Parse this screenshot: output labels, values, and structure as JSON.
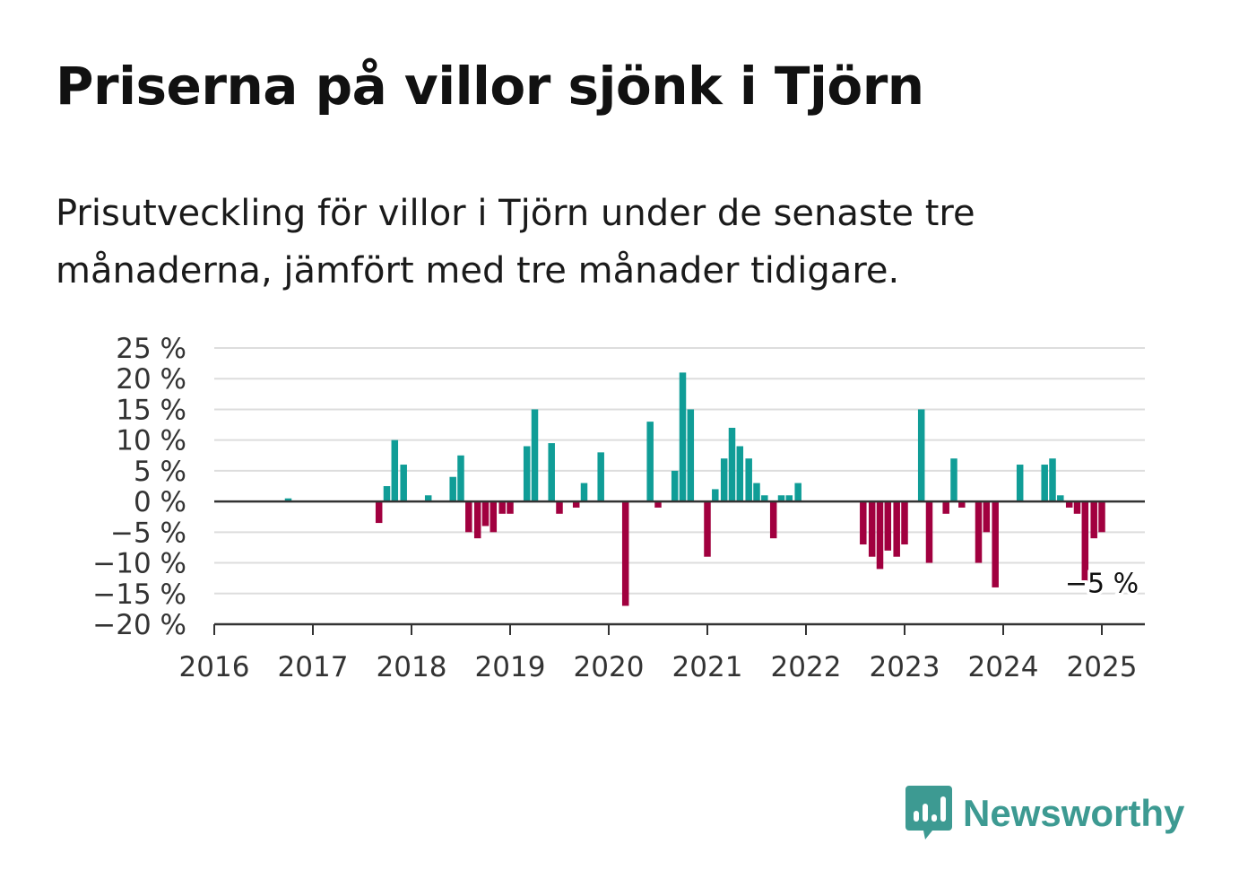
{
  "title": "Priserna på villor sjönk i Tjörn",
  "subtitle": "Prisutveckling för villor i Tjörn under de senaste tre månaderna, jämfört med tre månader tidigare.",
  "brand": {
    "name": "Newsworthy",
    "color": "#3d9a92",
    "icon": "newsworthy-logo-icon"
  },
  "colors": {
    "positive": "#109d97",
    "negative": "#a1003f",
    "grid": "#dddddd",
    "axis": "#333333"
  },
  "chart_data": {
    "type": "bar",
    "ylim": [
      -20,
      25
    ],
    "yticks": [
      -20,
      -15,
      -10,
      -5,
      0,
      5,
      10,
      15,
      20,
      25
    ],
    "ytick_labels": [
      "−20 %",
      "−15 %",
      "−10 %",
      "−5 %",
      "0 %",
      "5 %",
      "10 %",
      "15 %",
      "20 %",
      "25 %"
    ],
    "xlim": [
      2016,
      2025.45
    ],
    "xticks": [
      2016,
      2017,
      2018,
      2019,
      2020,
      2021,
      2022,
      2023,
      2024,
      2025
    ],
    "xtick_labels": [
      "2016",
      "2017",
      "2018",
      "2019",
      "2020",
      "2021",
      "2022",
      "2023",
      "2024",
      "2025"
    ],
    "grid": true,
    "series": [
      {
        "points": [
          [
            2016.75,
            0.5
          ],
          [
            2017.67,
            -3.5
          ],
          [
            2017.75,
            2.5
          ],
          [
            2017.83,
            10
          ],
          [
            2017.92,
            6
          ],
          [
            2018.17,
            1
          ],
          [
            2018.42,
            4
          ],
          [
            2018.5,
            7.5
          ],
          [
            2018.58,
            -5
          ],
          [
            2018.67,
            -6
          ],
          [
            2018.75,
            -4
          ],
          [
            2018.83,
            -5
          ],
          [
            2018.92,
            -2
          ],
          [
            2019.0,
            -2
          ],
          [
            2019.17,
            9
          ],
          [
            2019.25,
            15
          ],
          [
            2019.42,
            9.5
          ],
          [
            2019.5,
            -2
          ],
          [
            2019.67,
            -1
          ],
          [
            2019.75,
            3
          ],
          [
            2019.92,
            8
          ],
          [
            2020.17,
            -17
          ],
          [
            2020.42,
            13
          ],
          [
            2020.5,
            -1
          ],
          [
            2020.67,
            5
          ],
          [
            2020.75,
            21
          ],
          [
            2020.83,
            15
          ],
          [
            2021.0,
            -9
          ],
          [
            2021.08,
            2
          ],
          [
            2021.17,
            7
          ],
          [
            2021.25,
            12
          ],
          [
            2021.33,
            9
          ],
          [
            2021.42,
            7
          ],
          [
            2021.5,
            3
          ],
          [
            2021.58,
            1
          ],
          [
            2021.67,
            -6
          ],
          [
            2021.75,
            1
          ],
          [
            2021.83,
            1
          ],
          [
            2021.92,
            3
          ],
          [
            2022.58,
            -7
          ],
          [
            2022.67,
            -9
          ],
          [
            2022.75,
            -11
          ],
          [
            2022.83,
            -8
          ],
          [
            2022.92,
            -9
          ],
          [
            2023.0,
            -7
          ],
          [
            2023.17,
            15
          ],
          [
            2023.25,
            -10
          ],
          [
            2023.42,
            -2
          ],
          [
            2023.5,
            7
          ],
          [
            2023.58,
            -1
          ],
          [
            2023.75,
            -10
          ],
          [
            2023.83,
            -5
          ],
          [
            2023.92,
            -14
          ],
          [
            2024.17,
            6
          ],
          [
            2024.42,
            6
          ],
          [
            2024.5,
            7
          ],
          [
            2024.58,
            1
          ],
          [
            2024.67,
            -1
          ],
          [
            2024.75,
            -2
          ],
          [
            2024.83,
            -13
          ],
          [
            2024.92,
            -6
          ],
          [
            2025.0,
            -5
          ]
        ]
      }
    ],
    "annotation": {
      "text": "−5 %",
      "x": 2025.0,
      "y": -5
    }
  }
}
